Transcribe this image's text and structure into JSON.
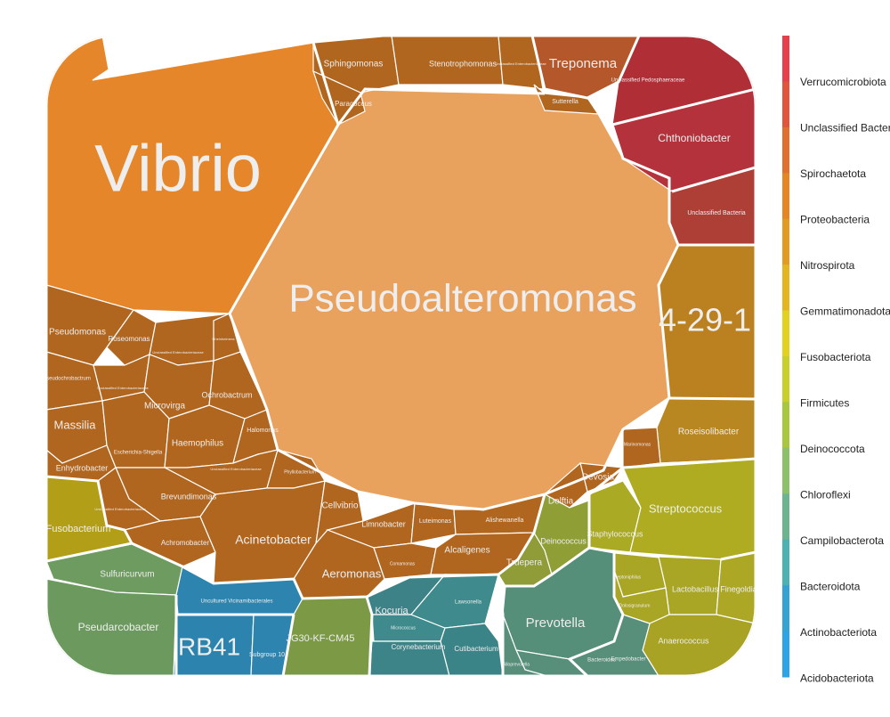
{
  "chart_data": {
    "type": "voronoi-treemap",
    "legend": {
      "placement": "right",
      "entries": [
        {
          "name": "Verrucomicrobiota",
          "color": "#E5404B"
        },
        {
          "name": "Unclassified Bacteria",
          "color": "#E0553C"
        },
        {
          "name": "Spirochaetota",
          "color": "#E0702E"
        },
        {
          "name": "Proteobacteria",
          "color": "#E58524"
        },
        {
          "name": "Nitrospirota",
          "color": "#E09B20"
        },
        {
          "name": "Gemmatimonadota",
          "color": "#E2B521"
        },
        {
          "name": "Fusobacteriota",
          "color": "#E3D11F"
        },
        {
          "name": "Firmicutes",
          "color": "#C8CF2B"
        },
        {
          "name": "Deinococcota",
          "color": "#A8C63E"
        },
        {
          "name": "Chloroflexi",
          "color": "#8CC06B"
        },
        {
          "name": "Campilobacterota",
          "color": "#6BB48F"
        },
        {
          "name": "Bacteroidota",
          "color": "#4DB0B1"
        },
        {
          "name": "Actinobacteriota",
          "color": "#35A2D2"
        },
        {
          "name": "Acidobacteriota",
          "color": "#2EA3E6"
        }
      ]
    },
    "cells": [
      {
        "name": "Vibrio",
        "phylum": "Proteobacteria",
        "size": "huge"
      },
      {
        "name": "Pseudoalteromonas",
        "phylum": "Proteobacteria",
        "size": "huge"
      },
      {
        "name": "4-29-1",
        "phylum": "Gemmatimonadota",
        "size": "large"
      },
      {
        "name": "RB41",
        "phylum": "Acidobacteriota",
        "size": "large"
      },
      {
        "name": "Treponema",
        "phylum": "Spirochaetota",
        "size": "medium"
      },
      {
        "name": "Chthoniobacter",
        "phylum": "Verrucomicrobiota",
        "size": "medium"
      },
      {
        "name": "Unclassified Pedosphaeraceae",
        "phylum": "Verrucomicrobiota",
        "size": "small"
      },
      {
        "name": "Unclassified Bacteria",
        "phylum": "Unclassified Bacteria",
        "size": "small"
      },
      {
        "name": "Roseisolibacter",
        "phylum": "Gemmatimonadota",
        "size": "medium"
      },
      {
        "name": "Streptococcus",
        "phylum": "Firmicutes",
        "size": "medium"
      },
      {
        "name": "Prevotella",
        "phylum": "Bacteroidota",
        "size": "medium"
      },
      {
        "name": "Pseudarcobacter",
        "phylum": "Campilobacterota",
        "size": "medium"
      },
      {
        "name": "Sulfuricurvum",
        "phylum": "Campilobacterota",
        "size": "small"
      },
      {
        "name": "Fusobacterium",
        "phylum": "Fusobacteriota",
        "size": "medium"
      },
      {
        "name": "Acinetobacter",
        "phylum": "Proteobacteria",
        "size": "medium"
      },
      {
        "name": "Kocuria",
        "phylum": "Actinobacteriota",
        "size": "small"
      },
      {
        "name": "Corynebacterium",
        "phylum": "Actinobacteriota",
        "size": "small"
      },
      {
        "name": "Cutibacterium",
        "phylum": "Actinobacteriota",
        "size": "small"
      },
      {
        "name": "Lawsonella",
        "phylum": "Actinobacteriota",
        "size": "tiny"
      },
      {
        "name": "Micrococcus",
        "phylum": "Actinobacteriota",
        "size": "tiny"
      },
      {
        "name": "JG30-KF-CM45",
        "phylum": "Chloroflexi",
        "size": "small"
      },
      {
        "name": "Truepera",
        "phylum": "Deinococcota",
        "size": "small"
      },
      {
        "name": "Deinococcus",
        "phylum": "Deinococcota",
        "size": "small"
      },
      {
        "name": "Staphylococcus",
        "phylum": "Firmicutes",
        "size": "small"
      },
      {
        "name": "Lactobacillus",
        "phylum": "Firmicutes",
        "size": "small"
      },
      {
        "name": "Anaerococcus",
        "phylum": "Firmicutes",
        "size": "small"
      },
      {
        "name": "Finegoldia",
        "phylum": "Firmicutes",
        "size": "tiny"
      },
      {
        "name": "Peptoniphilus",
        "phylum": "Firmicutes",
        "size": "tiny"
      },
      {
        "name": "Dolosigranulum",
        "phylum": "Firmicutes",
        "size": "tiny"
      },
      {
        "name": "Bacteroides",
        "phylum": "Bacteroidota",
        "size": "tiny"
      },
      {
        "name": "Empedobacter",
        "phylum": "Bacteroidota",
        "size": "tiny"
      },
      {
        "name": "Porphyromonas",
        "phylum": "Bacteroidota",
        "size": "tiny"
      },
      {
        "name": "Alloprevotella",
        "phylum": "Bacteroidota",
        "size": "tiny"
      },
      {
        "name": "Uncultured Vicinamibacterales",
        "phylum": "Acidobacteriota",
        "size": "tiny"
      },
      {
        "name": "Subgroup 10",
        "phylum": "Acidobacteriota",
        "size": "tiny"
      },
      {
        "name": "Sphingomonas",
        "phylum": "Proteobacteria",
        "size": "small"
      },
      {
        "name": "Stenotrophomonas",
        "phylum": "Proteobacteria",
        "size": "small"
      },
      {
        "name": "Unclassified Enterobacteriaceae",
        "phylum": "Proteobacteria",
        "size": "tiny"
      },
      {
        "name": "Paracoccus",
        "phylum": "Proteobacteria",
        "size": "small"
      },
      {
        "name": "Sutterella",
        "phylum": "Proteobacteria",
        "size": "tiny"
      },
      {
        "name": "Pseudomonas",
        "phylum": "Proteobacteria",
        "size": "small"
      },
      {
        "name": "Roseomonas",
        "phylum": "Proteobacteria",
        "size": "small"
      },
      {
        "name": "Pseudochrobactrum",
        "phylum": "Proteobacteria",
        "size": "tiny"
      },
      {
        "name": "Massilia",
        "phylum": "Proteobacteria",
        "size": "small"
      },
      {
        "name": "Microvirga",
        "phylum": "Proteobacteria",
        "size": "small"
      },
      {
        "name": "Ochrobactrum",
        "phylum": "Proteobacteria",
        "size": "small"
      },
      {
        "name": "Enhydrobacter",
        "phylum": "Proteobacteria",
        "size": "small"
      },
      {
        "name": "Escherichia-Shigella",
        "phylum": "Proteobacteria",
        "size": "tiny"
      },
      {
        "name": "Haemophilus",
        "phylum": "Proteobacteria",
        "size": "small"
      },
      {
        "name": "Halomonas",
        "phylum": "Proteobacteria",
        "size": "tiny"
      },
      {
        "name": "Brevundimonas",
        "phylum": "Proteobacteria",
        "size": "small"
      },
      {
        "name": "Achromobacter",
        "phylum": "Proteobacteria",
        "size": "tiny"
      },
      {
        "name": "Phyllobacterium",
        "phylum": "Proteobacteria",
        "size": "tiny"
      },
      {
        "name": "Cellvibrio",
        "phylum": "Proteobacteria",
        "size": "small"
      },
      {
        "name": "Limnobacter",
        "phylum": "Proteobacteria",
        "size": "small"
      },
      {
        "name": "Luteimonas",
        "phylum": "Proteobacteria",
        "size": "tiny"
      },
      {
        "name": "Alishewanella",
        "phylum": "Proteobacteria",
        "size": "tiny"
      },
      {
        "name": "Alcaligenes",
        "phylum": "Proteobacteria",
        "size": "small"
      },
      {
        "name": "Aeromonas",
        "phylum": "Proteobacteria",
        "size": "small"
      },
      {
        "name": "Delftia",
        "phylum": "Proteobacteria",
        "size": "small"
      },
      {
        "name": "Devosia",
        "phylum": "Proteobacteria",
        "size": "small"
      },
      {
        "name": "Marinomonas",
        "phylum": "Proteobacteria",
        "size": "tiny"
      },
      {
        "name": "Comamonas",
        "phylum": "Proteobacteria",
        "size": "tiny"
      },
      {
        "name": "Rheinheimera",
        "phylum": "Proteobacteria",
        "size": "tiny"
      }
    ]
  }
}
